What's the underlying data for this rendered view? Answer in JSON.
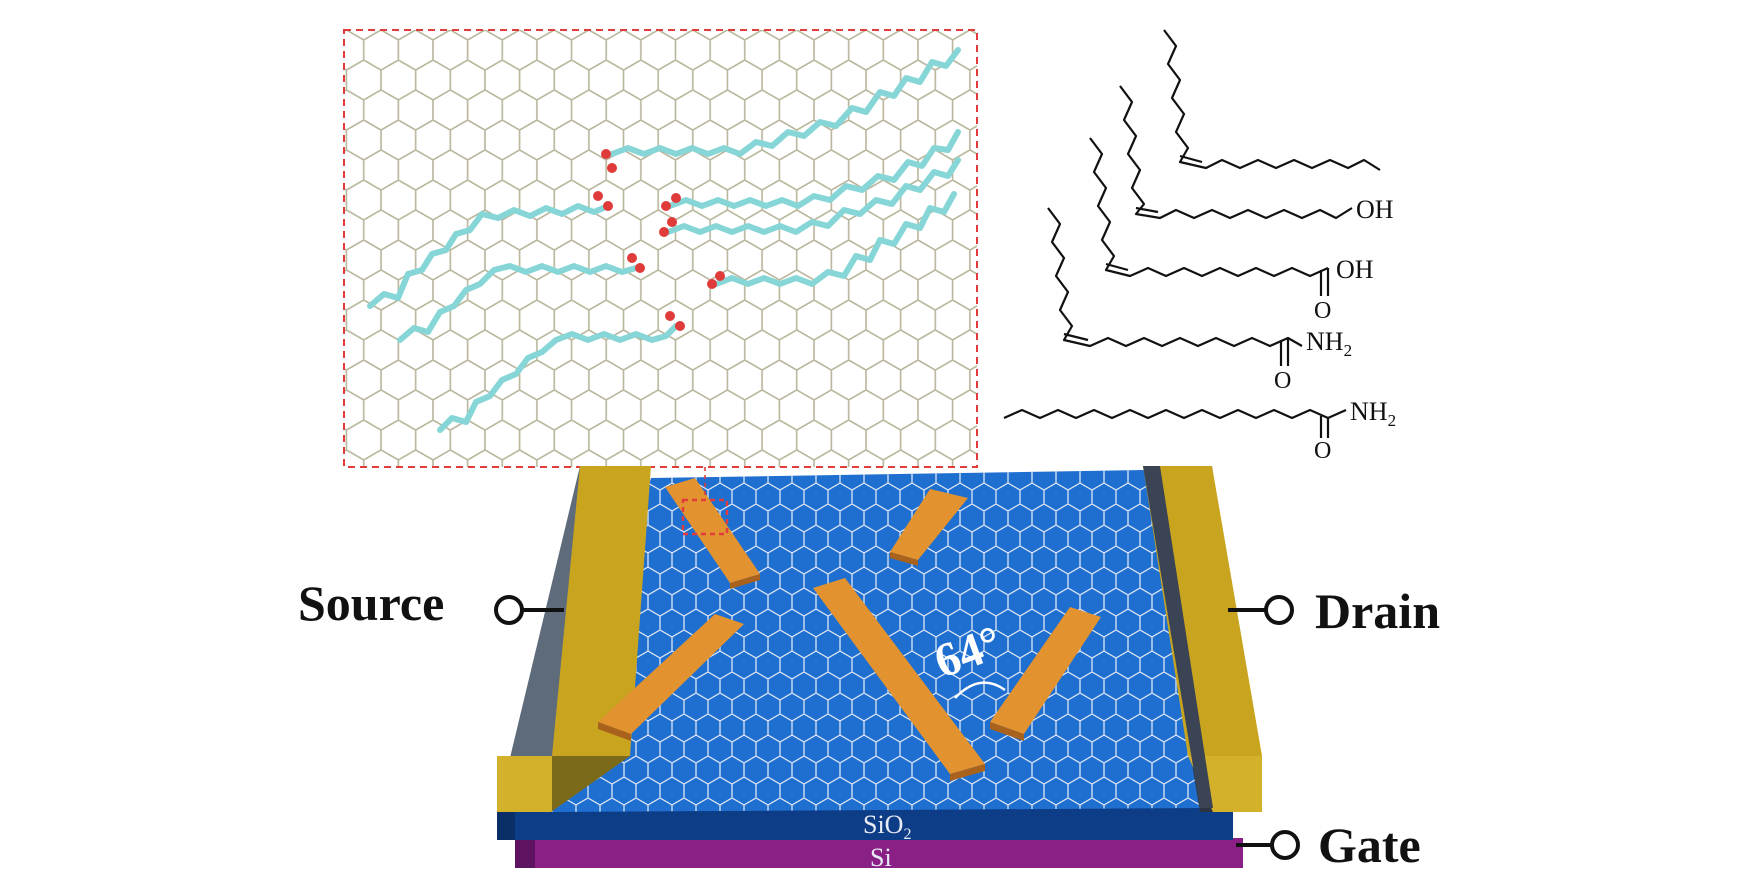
{
  "terminals": {
    "source": "Source",
    "drain": "Drain",
    "gate": "Gate"
  },
  "layers": {
    "oxide_main": "SiO",
    "oxide_sub": "2",
    "substrate": "Si"
  },
  "angle_label": "64°",
  "structures": {
    "hydroxyl": "OH",
    "acid": "OH",
    "acid_carbonyl": "O",
    "amide1": "NH",
    "amide1_sub": "2",
    "amide1_carbonyl": "O",
    "amide2": "NH",
    "amide2_sub": "2",
    "amide2_carbonyl": "O"
  },
  "colors": {
    "channel_blue": "#1f6fd1",
    "electrode_gold": "#c9a51f",
    "crystal_orange": "#e2932f",
    "oxide_navy": "#0d3d86",
    "silicon_purple": "#8a1f86",
    "inset_border_red": "#e23b3b",
    "molecule_cyan": "#86d6d8"
  }
}
